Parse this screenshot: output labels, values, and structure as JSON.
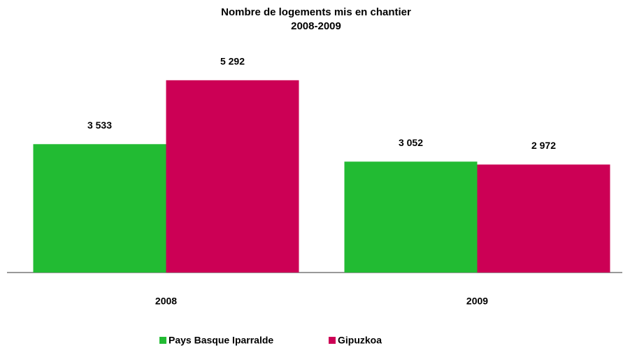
{
  "chart_data": {
    "type": "bar",
    "title": "Nombre de logements mis en chantier",
    "subtitle": "2008-2009",
    "categories": [
      "2008",
      "2009"
    ],
    "series": [
      {
        "name": "Pays Basque Iparralde",
        "color": "#22bb33",
        "values": [
          3533,
          3052
        ],
        "value_labels": [
          "3 533",
          "3 052"
        ]
      },
      {
        "name": "Gipuzkoa",
        "color": "#cc0055",
        "values": [
          5292,
          2972
        ],
        "value_labels": [
          "5 292",
          "2 972"
        ]
      }
    ],
    "ylim": [
      0,
      6000
    ],
    "grid": false
  }
}
